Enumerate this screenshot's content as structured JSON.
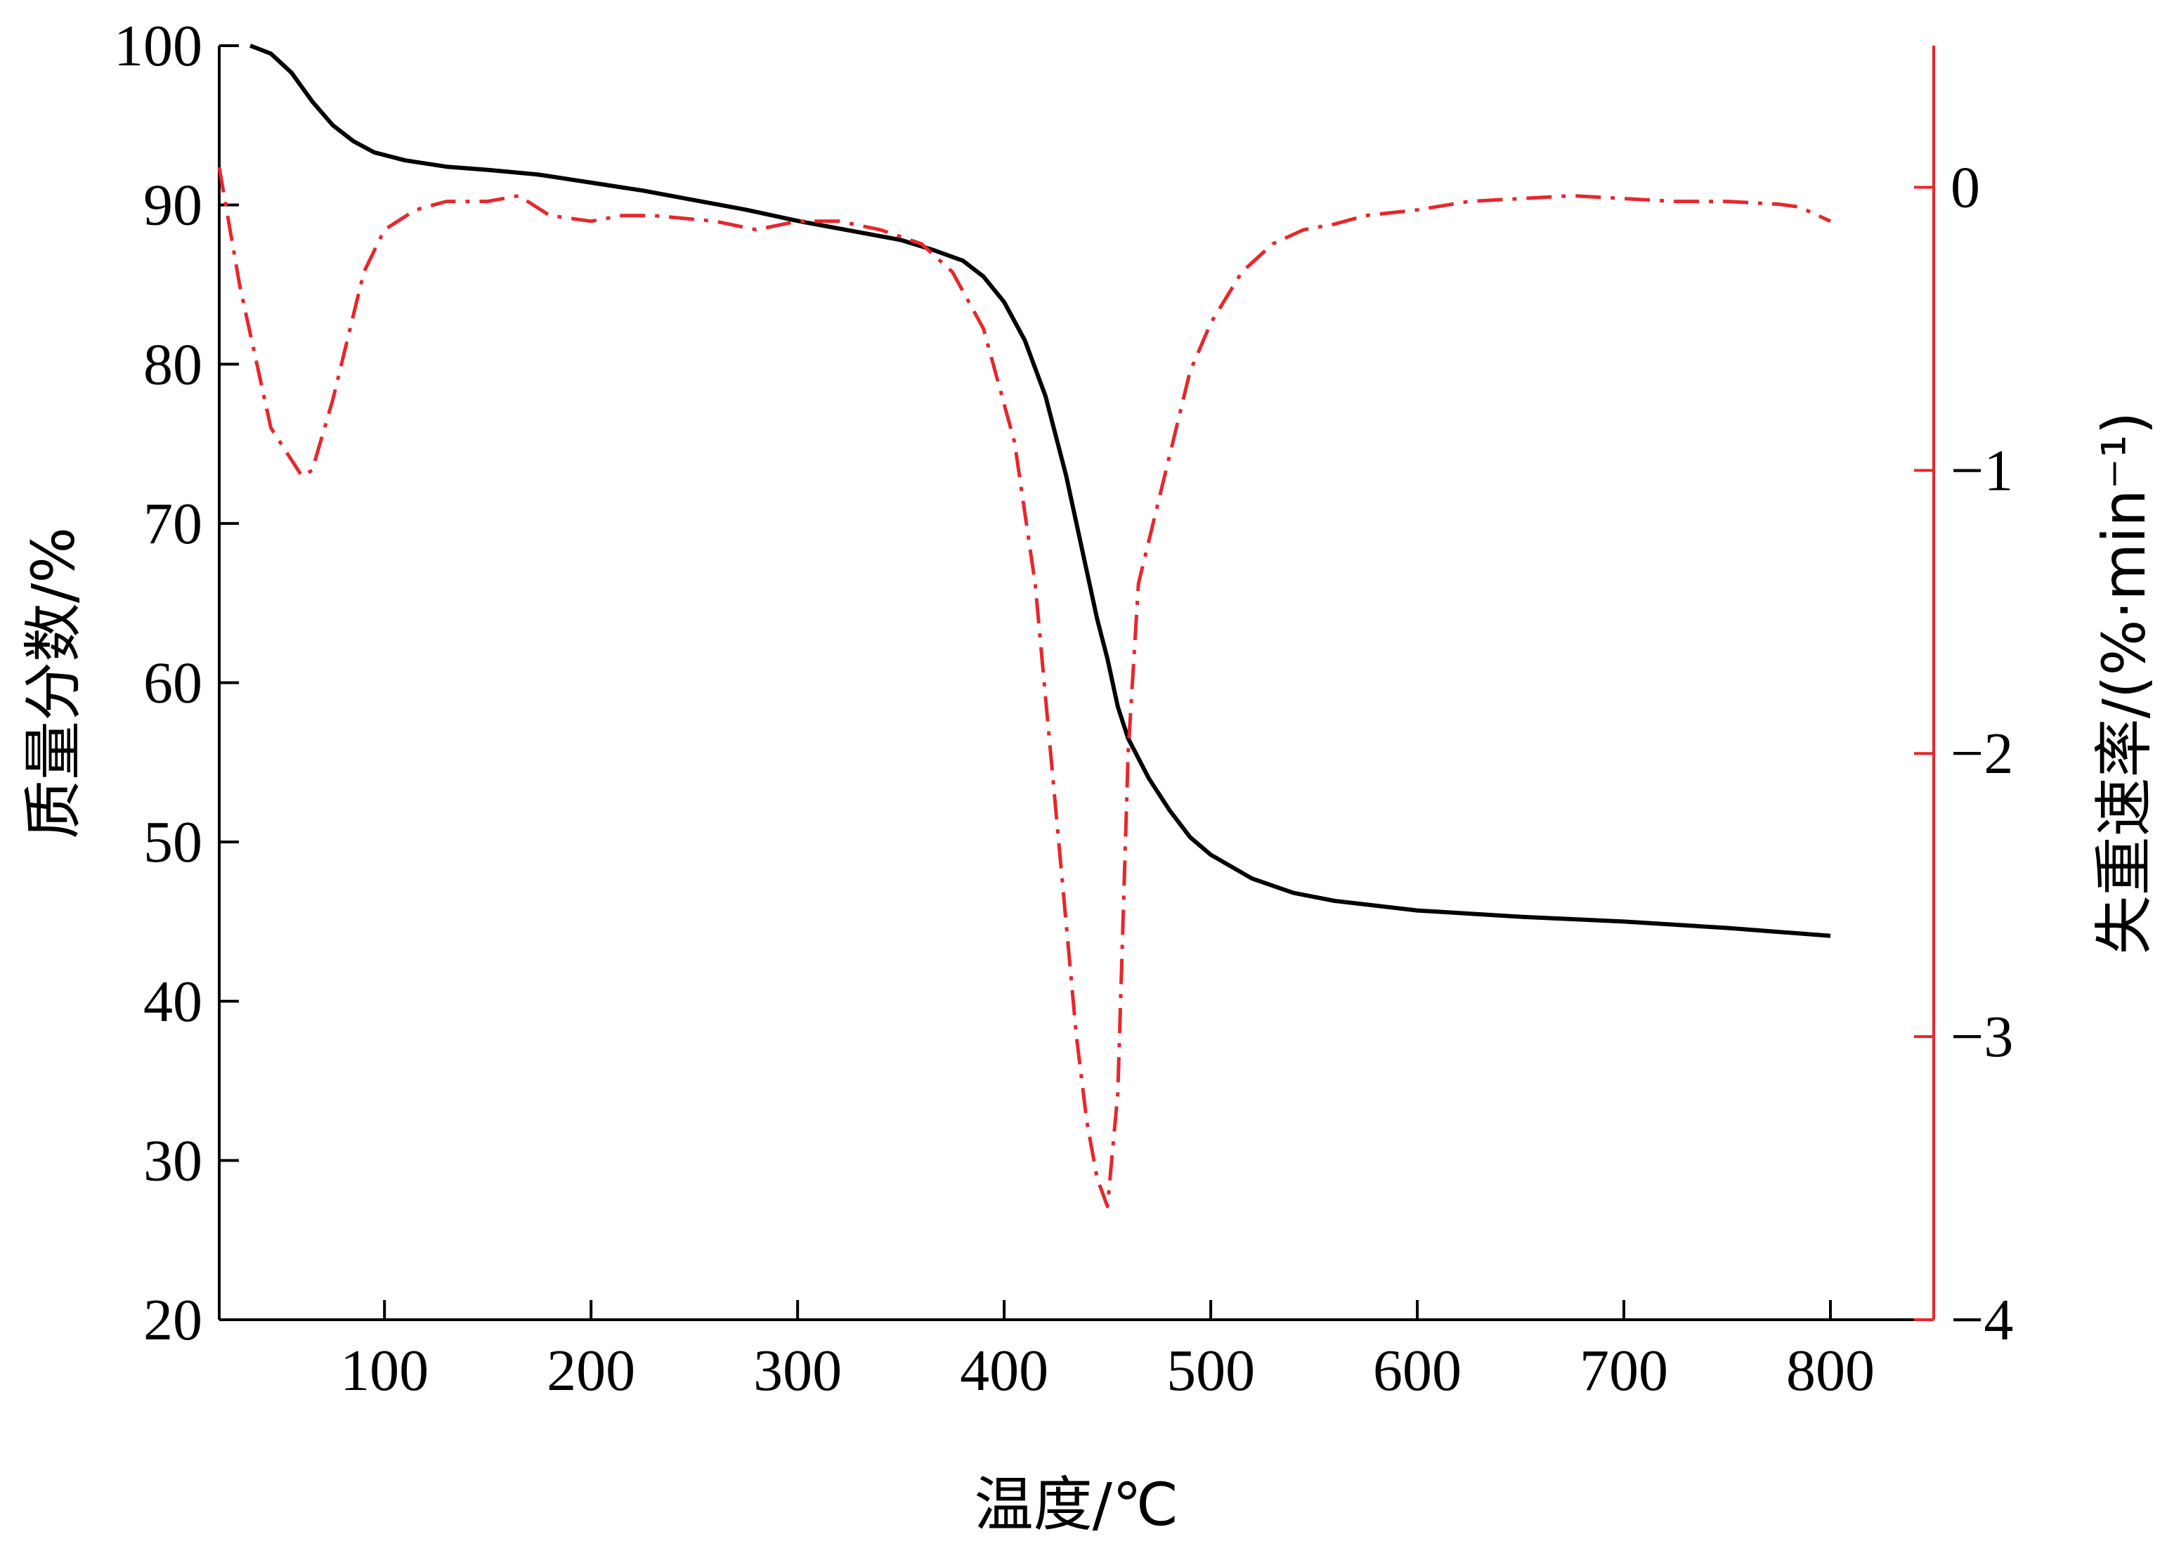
{
  "chart_data": {
    "type": "line",
    "xlabel": "温度/℃",
    "ylabel_left": "质量分数/%",
    "ylabel_right": "失重速率/(%·min⁻¹)",
    "xlim": [
      20,
      850
    ],
    "ylim_left": [
      20,
      100
    ],
    "ylim_right": [
      -4,
      0.5
    ],
    "x_ticks": [
      "100",
      "200",
      "300",
      "400",
      "500",
      "600",
      "700",
      "800"
    ],
    "y_left_ticks": [
      "20",
      "30",
      "40",
      "50",
      "60",
      "70",
      "80",
      "90",
      "100"
    ],
    "y_right_ticks": [
      "−4",
      "−3",
      "−2",
      "−1",
      "0"
    ],
    "grid": false,
    "colors": {
      "tg": "#000000",
      "dtg": "#e8262b",
      "right_axis": "#e8262b"
    },
    "series": [
      {
        "axis": "left",
        "style": "solid",
        "x": [
          35,
          45,
          55,
          65,
          75,
          85,
          95,
          110,
          130,
          150,
          175,
          200,
          225,
          250,
          275,
          300,
          325,
          350,
          365,
          380,
          390,
          400,
          410,
          420,
          430,
          440,
          445,
          450,
          455,
          460,
          470,
          480,
          490,
          500,
          520,
          540,
          560,
          600,
          650,
          700,
          750,
          800
        ],
        "y": [
          100,
          99.5,
          98.3,
          96.5,
          95,
          94,
          93.3,
          92.8,
          92.4,
          92.2,
          91.9,
          91.4,
          90.9,
          90.3,
          89.7,
          89,
          88.4,
          87.8,
          87.2,
          86.5,
          85.5,
          83.9,
          81.5,
          78,
          73,
          67,
          64,
          61.5,
          58.5,
          56.5,
          54,
          52,
          50.3,
          49.2,
          47.7,
          46.8,
          46.3,
          45.7,
          45.3,
          45,
          44.6,
          44.1
        ]
      },
      {
        "axis": "right",
        "style": "dash-dot",
        "x": [
          20,
          30,
          45,
          60,
          65,
          75,
          90,
          100,
          115,
          130,
          150,
          165,
          180,
          200,
          215,
          230,
          260,
          280,
          300,
          320,
          340,
          360,
          375,
          390,
          405,
          415,
          425,
          435,
          440,
          445,
          450,
          455,
          460,
          465,
          475,
          490,
          500,
          515,
          530,
          545,
          560,
          575,
          600,
          625,
          650,
          675,
          700,
          725,
          750,
          775,
          785,
          800
        ],
        "y": [
          0.07,
          -0.35,
          -0.85,
          -1.02,
          -1.0,
          -0.75,
          -0.3,
          -0.15,
          -0.08,
          -0.05,
          -0.05,
          -0.03,
          -0.1,
          -0.12,
          -0.1,
          -0.1,
          -0.12,
          -0.15,
          -0.12,
          -0.12,
          -0.15,
          -0.2,
          -0.3,
          -0.5,
          -0.9,
          -1.4,
          -2.2,
          -3.0,
          -3.3,
          -3.5,
          -3.6,
          -3.2,
          -2.0,
          -1.4,
          -1.1,
          -0.65,
          -0.48,
          -0.3,
          -0.2,
          -0.15,
          -0.13,
          -0.1,
          -0.08,
          -0.05,
          -0.04,
          -0.03,
          -0.04,
          -0.05,
          -0.05,
          -0.06,
          -0.07,
          -0.12
        ]
      }
    ]
  }
}
